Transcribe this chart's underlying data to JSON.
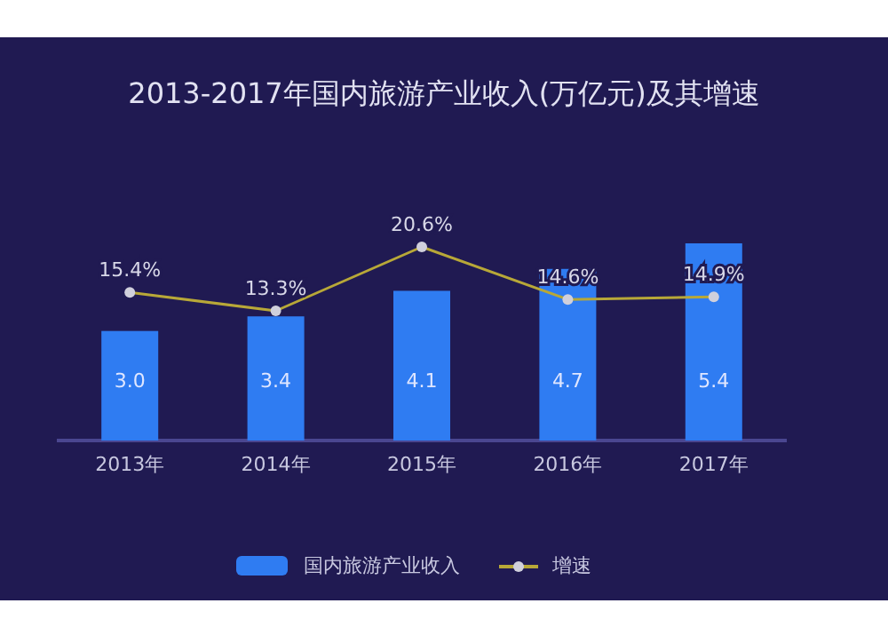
{
  "chart_data": {
    "type": "bar",
    "title": "2013-2017年国内旅游产业收入(万亿元)及其增速",
    "categories": [
      "2013年",
      "2014年",
      "2015年",
      "2016年",
      "2017年"
    ],
    "series": [
      {
        "name": "国内旅游产业收入",
        "color": "#2f7cf2",
        "values": [
          3.0,
          3.4,
          4.1,
          4.7,
          5.4
        ],
        "value_labels": [
          "3.0",
          "3.4",
          "4.1",
          "4.7",
          "5.4"
        ]
      },
      {
        "name": "增速",
        "type": "line",
        "axis": "y2",
        "color": "#b8a838",
        "values": [
          15.4,
          13.3,
          20.6,
          14.6,
          14.9
        ],
        "value_labels": [
          "15.4%",
          "13.3%",
          "20.6%",
          "14.6%",
          "14.9%"
        ]
      }
    ],
    "legend": "bottom",
    "marker": "circle",
    "tick_labels": "x"
  }
}
